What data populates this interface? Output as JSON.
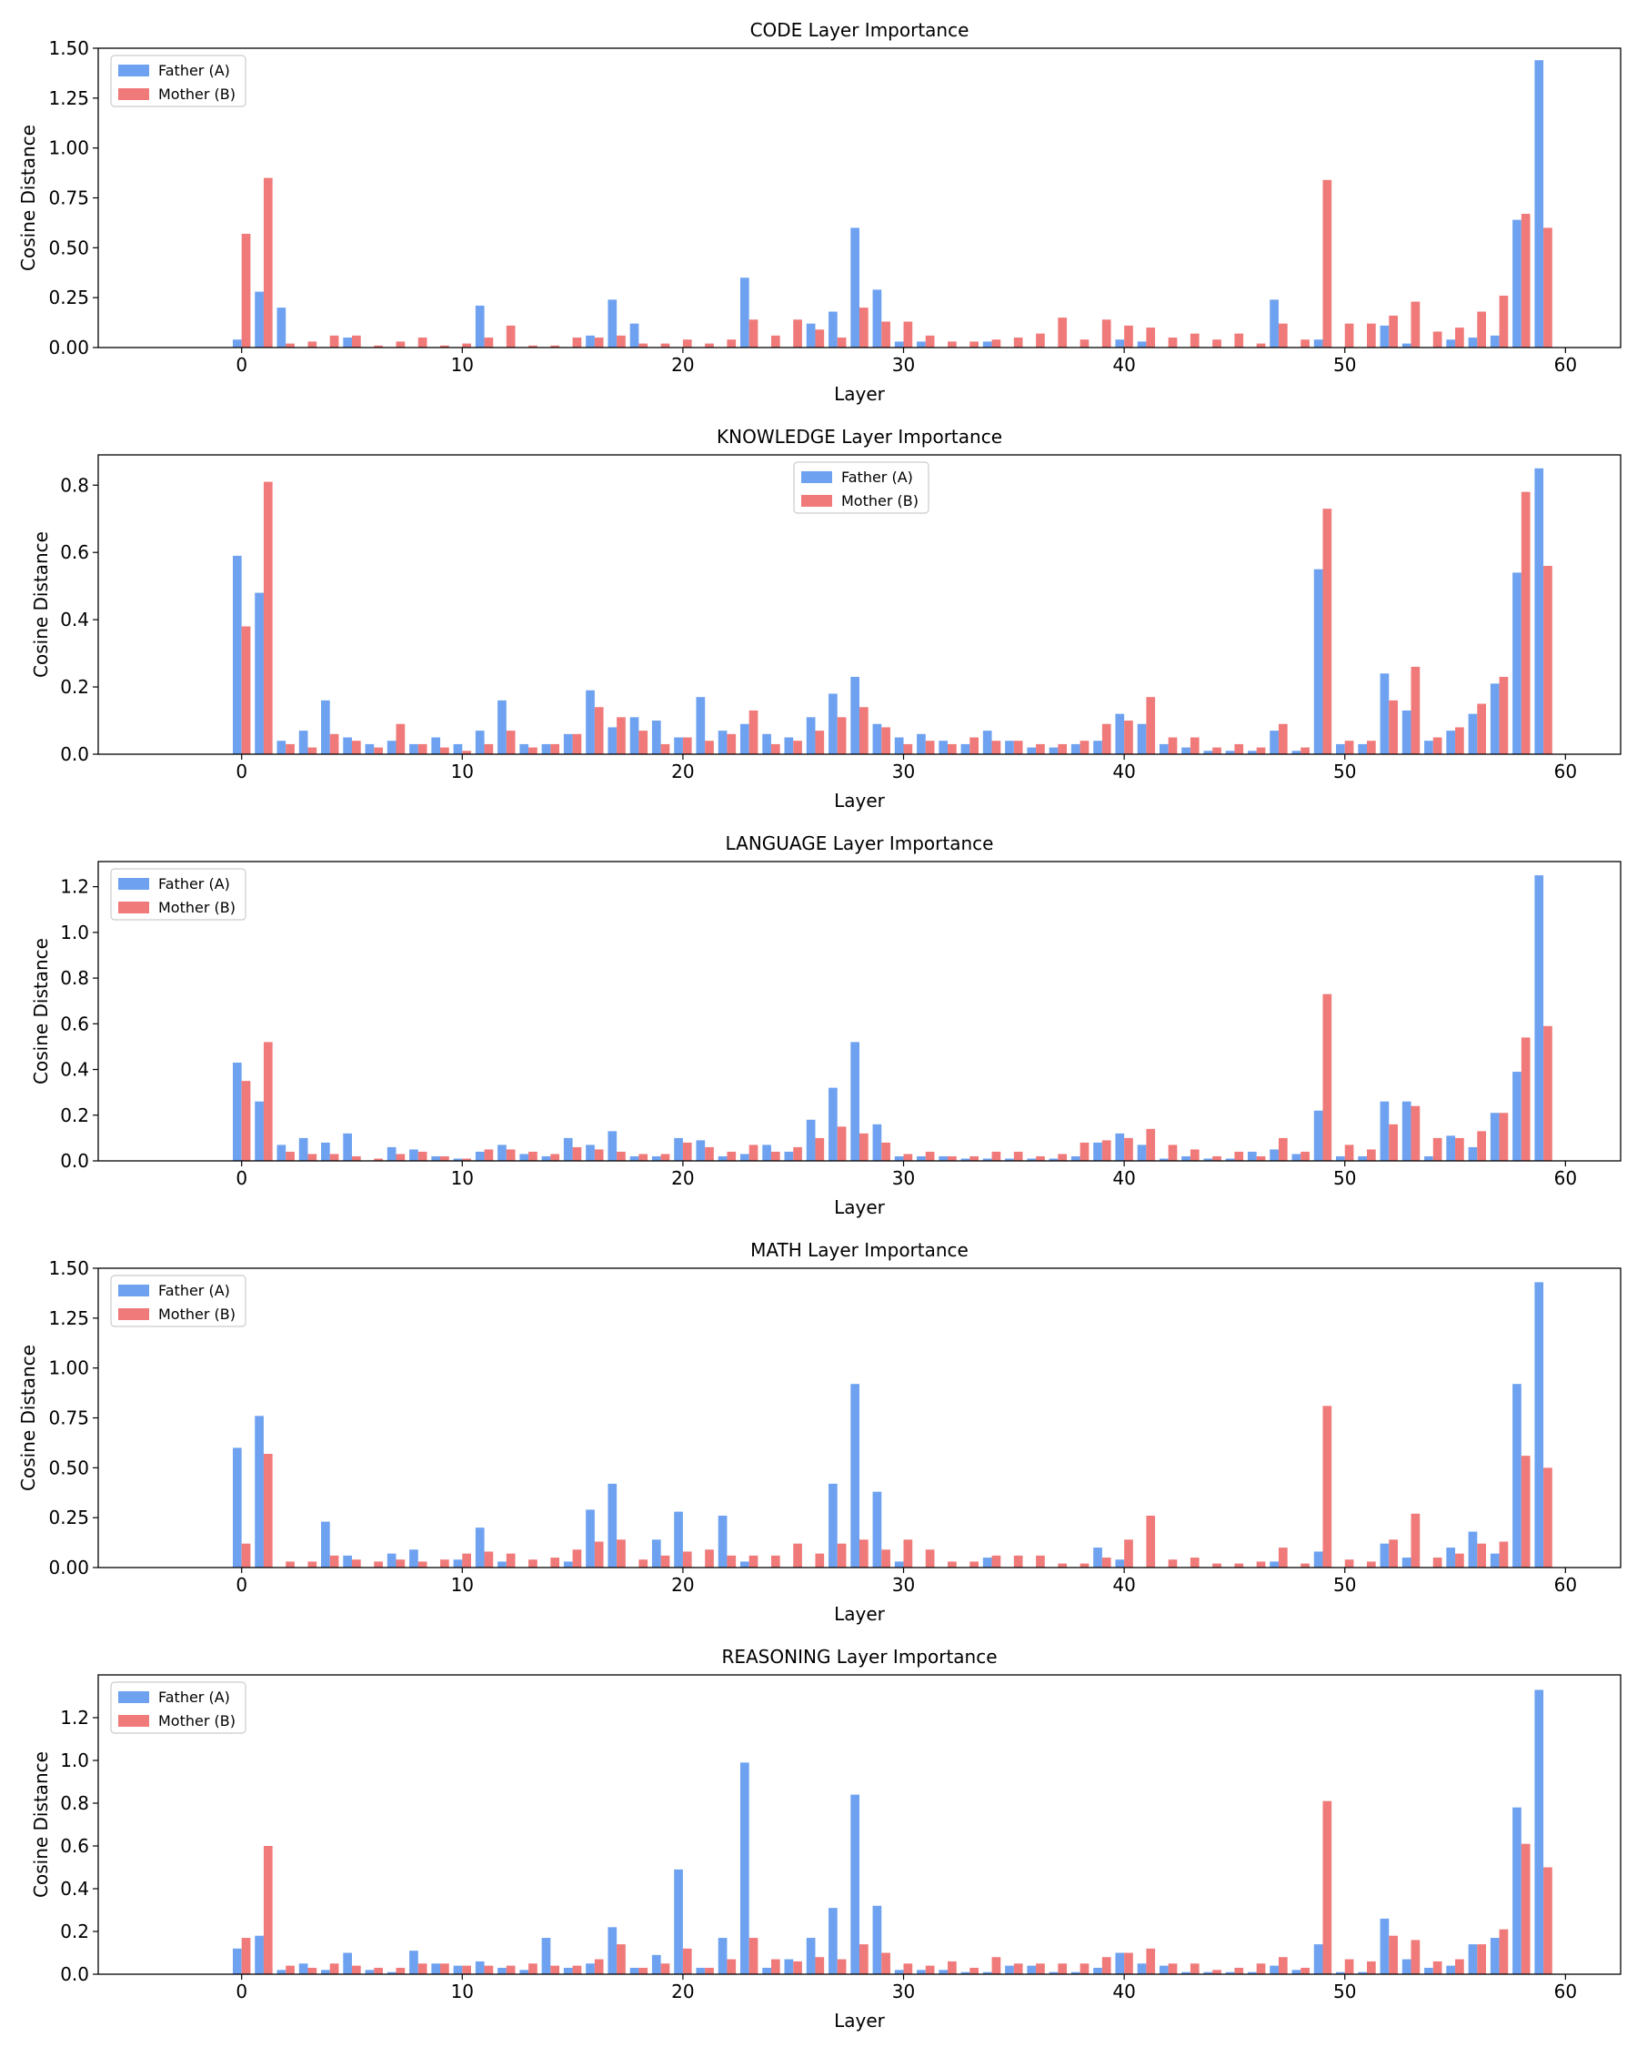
{
  "colors": {
    "father": "#6ea2f0",
    "mother": "#f07a7a"
  },
  "chart_data": [
    {
      "type": "bar",
      "title": "CODE Layer Importance",
      "xlabel": "Layer",
      "ylabel": "Cosine Distance",
      "xlim": [
        -6.5,
        62.5
      ],
      "ylim": [
        0,
        1.5
      ],
      "xticks": [
        0,
        10,
        20,
        30,
        40,
        50,
        60
      ],
      "yticks": [
        "0.00",
        "0.25",
        "0.50",
        "0.75",
        "1.00",
        "1.25",
        "1.50"
      ],
      "legend": "top-left",
      "series": [
        {
          "name": "Father (A)",
          "values": [
            0.04,
            0.28,
            0.2,
            0.0,
            0.0,
            0.05,
            0.0,
            0.0,
            0.0,
            0.0,
            0.0,
            0.21,
            0.0,
            0.0,
            0.0,
            0.0,
            0.06,
            0.24,
            0.12,
            0.0,
            0.0,
            0.0,
            0.0,
            0.35,
            0.0,
            0.0,
            0.12,
            0.18,
            0.6,
            0.29,
            0.03,
            0.03,
            0.0,
            0.0,
            0.03,
            0.0,
            0.0,
            0.0,
            0.0,
            0.0,
            0.04,
            0.03,
            0.0,
            0.0,
            0.0,
            0.0,
            0.0,
            0.24,
            0.0,
            0.04,
            0.0,
            0.0,
            0.11,
            0.02,
            0.0,
            0.04,
            0.05,
            0.06,
            0.64,
            1.44
          ]
        },
        {
          "name": "Mother (B)",
          "values": [
            0.57,
            0.85,
            0.02,
            0.03,
            0.06,
            0.06,
            0.01,
            0.03,
            0.05,
            0.01,
            0.02,
            0.05,
            0.11,
            0.01,
            0.01,
            0.05,
            0.05,
            0.06,
            0.02,
            0.02,
            0.04,
            0.02,
            0.04,
            0.14,
            0.06,
            0.14,
            0.09,
            0.05,
            0.2,
            0.13,
            0.13,
            0.06,
            0.03,
            0.03,
            0.04,
            0.05,
            0.07,
            0.15,
            0.04,
            0.14,
            0.11,
            0.1,
            0.05,
            0.07,
            0.04,
            0.07,
            0.02,
            0.12,
            0.04,
            0.84,
            0.12,
            0.12,
            0.16,
            0.23,
            0.08,
            0.1,
            0.18,
            0.26,
            0.67,
            0.6
          ]
        }
      ]
    },
    {
      "type": "bar",
      "title": "KNOWLEDGE Layer Importance",
      "xlabel": "Layer",
      "ylabel": "Cosine Distance",
      "xlim": [
        -6.5,
        62.5
      ],
      "ylim": [
        0,
        0.89
      ],
      "xticks": [
        0,
        10,
        20,
        30,
        40,
        50,
        60
      ],
      "yticks": [
        "0.0",
        "0.2",
        "0.4",
        "0.6",
        "0.8"
      ],
      "legend": "top-center",
      "series": [
        {
          "name": "Father (A)",
          "values": [
            0.59,
            0.48,
            0.04,
            0.07,
            0.16,
            0.05,
            0.03,
            0.04,
            0.03,
            0.05,
            0.03,
            0.07,
            0.16,
            0.03,
            0.03,
            0.06,
            0.19,
            0.08,
            0.11,
            0.1,
            0.05,
            0.17,
            0.07,
            0.09,
            0.06,
            0.05,
            0.11,
            0.18,
            0.23,
            0.09,
            0.05,
            0.06,
            0.04,
            0.03,
            0.07,
            0.04,
            0.02,
            0.02,
            0.03,
            0.04,
            0.12,
            0.09,
            0.03,
            0.02,
            0.01,
            0.01,
            0.01,
            0.07,
            0.01,
            0.55,
            0.03,
            0.03,
            0.24,
            0.13,
            0.04,
            0.07,
            0.12,
            0.21,
            0.54,
            0.85
          ]
        },
        {
          "name": "Mother (B)",
          "values": [
            0.38,
            0.81,
            0.03,
            0.02,
            0.06,
            0.04,
            0.02,
            0.09,
            0.03,
            0.02,
            0.01,
            0.03,
            0.07,
            0.02,
            0.03,
            0.06,
            0.14,
            0.11,
            0.07,
            0.03,
            0.05,
            0.04,
            0.06,
            0.13,
            0.03,
            0.04,
            0.07,
            0.11,
            0.14,
            0.08,
            0.03,
            0.04,
            0.03,
            0.05,
            0.04,
            0.04,
            0.03,
            0.03,
            0.04,
            0.09,
            0.1,
            0.17,
            0.05,
            0.05,
            0.02,
            0.03,
            0.02,
            0.09,
            0.02,
            0.73,
            0.04,
            0.04,
            0.16,
            0.26,
            0.05,
            0.08,
            0.15,
            0.23,
            0.78,
            0.56
          ]
        }
      ]
    },
    {
      "type": "bar",
      "title": "LANGUAGE Layer Importance",
      "xlabel": "Layer",
      "ylabel": "Cosine Distance",
      "xlim": [
        -6.5,
        62.5
      ],
      "ylim": [
        0,
        1.31
      ],
      "xticks": [
        0,
        10,
        20,
        30,
        40,
        50,
        60
      ],
      "yticks": [
        "0.0",
        "0.2",
        "0.4",
        "0.6",
        "0.8",
        "1.0",
        "1.2"
      ],
      "legend": "top-left",
      "series": [
        {
          "name": "Father (A)",
          "values": [
            0.43,
            0.26,
            0.07,
            0.1,
            0.08,
            0.12,
            0.0,
            0.06,
            0.05,
            0.02,
            0.01,
            0.04,
            0.07,
            0.03,
            0.02,
            0.1,
            0.07,
            0.13,
            0.02,
            0.02,
            0.1,
            0.09,
            0.02,
            0.03,
            0.07,
            0.04,
            0.18,
            0.32,
            0.52,
            0.16,
            0.02,
            0.02,
            0.02,
            0.01,
            0.01,
            0.01,
            0.01,
            0.01,
            0.02,
            0.08,
            0.12,
            0.07,
            0.01,
            0.02,
            0.01,
            0.01,
            0.04,
            0.05,
            0.03,
            0.22,
            0.02,
            0.02,
            0.26,
            0.26,
            0.02,
            0.11,
            0.06,
            0.21,
            0.39,
            1.25
          ]
        },
        {
          "name": "Mother (B)",
          "values": [
            0.35,
            0.52,
            0.04,
            0.03,
            0.03,
            0.02,
            0.01,
            0.03,
            0.04,
            0.02,
            0.01,
            0.05,
            0.05,
            0.04,
            0.03,
            0.06,
            0.05,
            0.04,
            0.03,
            0.03,
            0.08,
            0.06,
            0.04,
            0.07,
            0.04,
            0.06,
            0.1,
            0.15,
            0.12,
            0.08,
            0.03,
            0.04,
            0.02,
            0.02,
            0.04,
            0.04,
            0.02,
            0.03,
            0.08,
            0.09,
            0.1,
            0.14,
            0.07,
            0.05,
            0.02,
            0.04,
            0.02,
            0.1,
            0.04,
            0.73,
            0.07,
            0.05,
            0.16,
            0.24,
            0.1,
            0.1,
            0.13,
            0.21,
            0.54,
            0.59
          ]
        }
      ]
    },
    {
      "type": "bar",
      "title": "MATH Layer Importance",
      "xlabel": "Layer",
      "ylabel": "Cosine Distance",
      "xlim": [
        -6.5,
        62.5
      ],
      "ylim": [
        0,
        1.5
      ],
      "xticks": [
        0,
        10,
        20,
        30,
        40,
        50,
        60
      ],
      "yticks": [
        "0.00",
        "0.25",
        "0.50",
        "0.75",
        "1.00",
        "1.25",
        "1.50"
      ],
      "legend": "top-left",
      "series": [
        {
          "name": "Father (A)",
          "values": [
            0.6,
            0.76,
            0.0,
            0.0,
            0.23,
            0.06,
            0.0,
            0.07,
            0.09,
            0.0,
            0.04,
            0.2,
            0.03,
            0.0,
            0.0,
            0.03,
            0.29,
            0.42,
            0.0,
            0.14,
            0.28,
            0.0,
            0.26,
            0.03,
            0.0,
            0.0,
            0.0,
            0.42,
            0.92,
            0.38,
            0.03,
            0.0,
            0.0,
            0.0,
            0.05,
            0.0,
            0.0,
            0.0,
            0.0,
            0.1,
            0.04,
            0.0,
            0.0,
            0.0,
            0.0,
            0.0,
            0.0,
            0.03,
            0.0,
            0.08,
            0.0,
            0.0,
            0.12,
            0.05,
            0.0,
            0.1,
            0.18,
            0.07,
            0.92,
            1.43
          ]
        },
        {
          "name": "Mother (B)",
          "values": [
            0.12,
            0.57,
            0.03,
            0.03,
            0.06,
            0.04,
            0.03,
            0.04,
            0.03,
            0.04,
            0.07,
            0.08,
            0.07,
            0.04,
            0.05,
            0.09,
            0.13,
            0.14,
            0.04,
            0.06,
            0.08,
            0.09,
            0.06,
            0.06,
            0.06,
            0.12,
            0.07,
            0.12,
            0.14,
            0.09,
            0.14,
            0.09,
            0.03,
            0.03,
            0.06,
            0.06,
            0.06,
            0.02,
            0.02,
            0.05,
            0.14,
            0.26,
            0.04,
            0.05,
            0.02,
            0.02,
            0.03,
            0.1,
            0.02,
            0.81,
            0.04,
            0.03,
            0.14,
            0.27,
            0.05,
            0.07,
            0.12,
            0.13,
            0.56,
            0.5
          ]
        }
      ]
    },
    {
      "type": "bar",
      "title": "REASONING Layer Importance",
      "xlabel": "Layer",
      "ylabel": "Cosine Distance",
      "xlim": [
        -6.5,
        62.5
      ],
      "ylim": [
        0,
        1.4
      ],
      "xticks": [
        0,
        10,
        20,
        30,
        40,
        50,
        60
      ],
      "yticks": [
        "0.0",
        "0.2",
        "0.4",
        "0.6",
        "0.8",
        "1.0",
        "1.2"
      ],
      "legend": "top-left",
      "series": [
        {
          "name": "Father (A)",
          "values": [
            0.12,
            0.18,
            0.02,
            0.05,
            0.02,
            0.1,
            0.02,
            0.01,
            0.11,
            0.05,
            0.04,
            0.06,
            0.03,
            0.02,
            0.17,
            0.03,
            0.05,
            0.22,
            0.03,
            0.09,
            0.49,
            0.03,
            0.17,
            0.99,
            0.03,
            0.07,
            0.17,
            0.31,
            0.84,
            0.32,
            0.02,
            0.02,
            0.02,
            0.01,
            0.01,
            0.04,
            0.04,
            0.01,
            0.01,
            0.03,
            0.1,
            0.05,
            0.04,
            0.01,
            0.01,
            0.01,
            0.01,
            0.04,
            0.02,
            0.14,
            0.01,
            0.01,
            0.26,
            0.07,
            0.03,
            0.04,
            0.14,
            0.17,
            0.78,
            1.33
          ]
        },
        {
          "name": "Mother (B)",
          "values": [
            0.17,
            0.6,
            0.04,
            0.03,
            0.05,
            0.04,
            0.03,
            0.03,
            0.05,
            0.05,
            0.04,
            0.04,
            0.04,
            0.05,
            0.04,
            0.04,
            0.07,
            0.14,
            0.03,
            0.05,
            0.12,
            0.03,
            0.07,
            0.17,
            0.07,
            0.06,
            0.08,
            0.07,
            0.14,
            0.1,
            0.05,
            0.04,
            0.06,
            0.03,
            0.08,
            0.05,
            0.05,
            0.05,
            0.05,
            0.08,
            0.1,
            0.12,
            0.05,
            0.05,
            0.02,
            0.03,
            0.05,
            0.08,
            0.03,
            0.81,
            0.07,
            0.06,
            0.18,
            0.16,
            0.06,
            0.07,
            0.14,
            0.21,
            0.61,
            0.5
          ]
        }
      ]
    }
  ]
}
